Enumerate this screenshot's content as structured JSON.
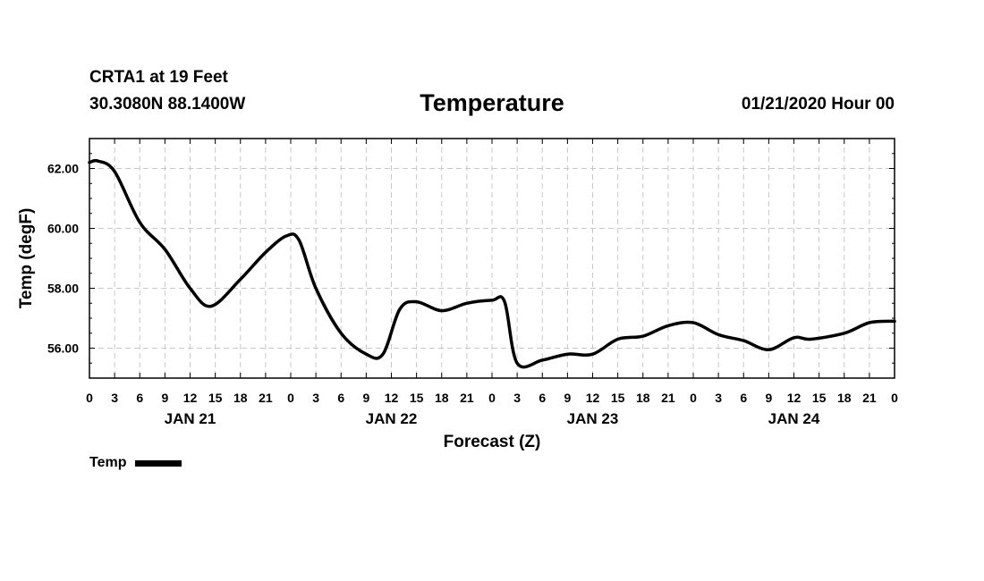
{
  "header": {
    "station": "CRTA1 at 19 Feet",
    "coords": "30.3080N 88.1400W",
    "title": "Temperature",
    "datetime": "01/21/2020 Hour 00"
  },
  "legend": {
    "label": "Temp"
  },
  "chart_data": {
    "type": "line",
    "title": "Temperature",
    "xlabel": "Forecast (Z)",
    "ylabel": "Temp (degF)",
    "xlim": [
      0,
      96
    ],
    "ylim": [
      55.0,
      63.0
    ],
    "yticks": [
      "62.00",
      "60.00",
      "58.00",
      "56.00"
    ],
    "ytick_values": [
      62,
      60,
      58,
      56
    ],
    "xtick_labels": [
      "0",
      "3",
      "6",
      "9",
      "12",
      "15",
      "18",
      "21",
      "0",
      "3",
      "6",
      "9",
      "12",
      "15",
      "18",
      "21",
      "0",
      "3",
      "6",
      "9",
      "12",
      "15",
      "18",
      "21",
      "0",
      "3",
      "6",
      "9",
      "12",
      "15",
      "18",
      "21",
      "0"
    ],
    "day_labels": [
      {
        "label": "JAN 21",
        "hour": 12
      },
      {
        "label": "JAN 22",
        "hour": 36
      },
      {
        "label": "JAN 23",
        "hour": 60
      },
      {
        "label": "JAN 24",
        "hour": 84
      }
    ],
    "grid": true,
    "legend_position": "bottom-left",
    "series": [
      {
        "name": "Temp",
        "color": "#000000",
        "x": [
          0,
          1,
          3,
          6,
          9,
          12,
          14.5,
          18,
          21,
          23.5,
          25,
          27,
          30,
          33,
          35,
          37,
          39,
          42,
          45,
          48,
          49.5,
          51,
          54,
          57,
          60,
          63,
          66,
          69,
          72,
          75,
          78,
          81,
          84,
          86,
          90,
          93,
          96
        ],
        "y": [
          62.2,
          62.25,
          61.9,
          60.2,
          59.3,
          58.0,
          57.4,
          58.3,
          59.2,
          59.75,
          59.6,
          58.0,
          56.5,
          55.8,
          55.8,
          57.3,
          57.55,
          57.25,
          57.5,
          57.6,
          57.55,
          55.5,
          55.6,
          55.8,
          55.8,
          56.3,
          56.4,
          56.75,
          56.85,
          56.45,
          56.25,
          55.95,
          56.35,
          56.3,
          56.5,
          56.85,
          56.9
        ]
      }
    ]
  }
}
